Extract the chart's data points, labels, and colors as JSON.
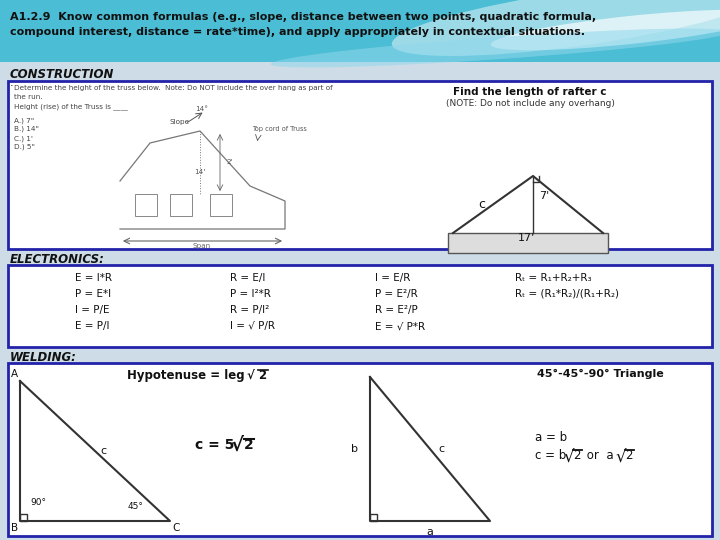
{
  "title_line1": "A1.2.9  Know common formulas (e.g., slope, distance between two points, quadratic formula,",
  "title_line2": "compound interest, distance = rate*time), and apply appropriately in contextual situations.",
  "section1_label": "CONSTRUCTION",
  "section2_label": "ELECTRONICS:",
  "section3_label": "WELDING:",
  "construction_right_line1": "Find the length of rafter c",
  "construction_right_line2": "(NOTE: Do not include any overhang)",
  "electronics_col1": [
    "E = I*R",
    "P = E*I",
    "I = P/E",
    "E = P/I"
  ],
  "electronics_col2": [
    "R = E/I",
    "P = I²*R",
    "R = P/I²",
    "I = √ P/R"
  ],
  "electronics_col3": [
    "I = E/R",
    "P = E²/R",
    "R = E²/P",
    "E = √ P*R"
  ],
  "electronics_col4_line1": "Rₜ = R₁+R₂+R₃",
  "electronics_col4_line2": "Rₜ = (R₁*R₂)/(R₁+R₂)",
  "welding_hyp_text": "Hypotenuse = leg",
  "welding_45_title": "45°-45°-90° Triangle",
  "welding_ab_eq": "a = b",
  "border_color": "#2222aa",
  "bg_light": "#cce0ea",
  "bg_content": "#c8d8e2"
}
